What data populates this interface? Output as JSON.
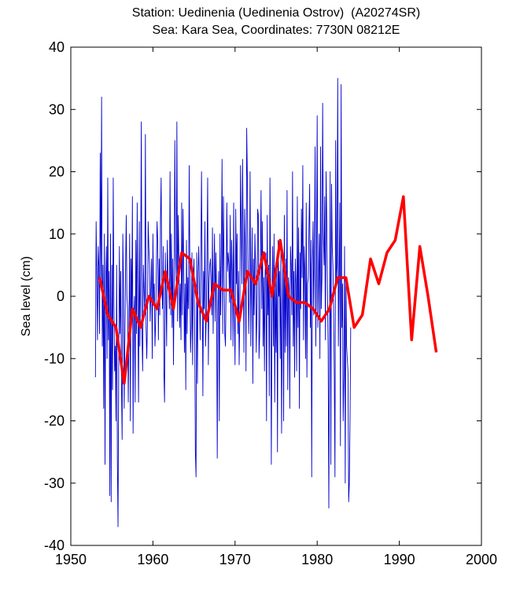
{
  "chart_data": {
    "type": "line",
    "title": "Station: Uedinenia (Uedinenia Ostrov)  (A20274SR)",
    "subtitle": "Sea: Kara Sea, Coordinates: 7730N 08212E",
    "xlabel": "",
    "ylabel": "Sea level (cm)",
    "xlim": [
      1950,
      2000
    ],
    "ylim": [
      -40,
      40
    ],
    "xticks": [
      1950,
      1960,
      1970,
      1980,
      1990,
      2000
    ],
    "yticks": [
      -40,
      -30,
      -20,
      -10,
      0,
      10,
      20,
      30,
      40
    ],
    "grid": false,
    "colors": {
      "monthly": "#0000cc",
      "annual": "#ff0000"
    },
    "series": [
      {
        "kind": "monthly",
        "x_start": 1953.0,
        "x_step": 0.08333,
        "values": [
          -13,
          12,
          3,
          -7,
          8,
          5,
          -6,
          23,
          2,
          32,
          -8,
          5,
          -18,
          10,
          -27,
          3,
          8,
          -10,
          19,
          -7,
          4,
          -32,
          10,
          -33,
          5,
          -15,
          19,
          -1,
          -12,
          -8,
          -20,
          5,
          -26,
          -37,
          -12,
          8,
          -6,
          4,
          -14,
          -23,
          10,
          2,
          -18,
          -7,
          4,
          13,
          0,
          -2,
          -17,
          -5,
          10,
          -20,
          6,
          -4,
          16,
          -22,
          -3,
          0,
          -17,
          9,
          -6,
          15,
          -3,
          -17,
          12,
          -8,
          3,
          28,
          -6,
          -12,
          5,
          1,
          -3,
          26,
          -5,
          -10,
          -4,
          12,
          8,
          5,
          -4,
          1,
          6,
          -10,
          10,
          -1,
          2,
          -8,
          -4,
          4,
          12,
          9,
          -7,
          6,
          -3,
          12,
          19,
          2,
          -2,
          8,
          -12,
          -17,
          7,
          1,
          -8,
          9,
          3,
          2,
          -2,
          20,
          -3,
          10,
          -5,
          6,
          -11,
          3,
          25,
          7,
          2,
          28,
          -4,
          13,
          6,
          -5,
          2,
          -7,
          15,
          -3,
          14,
          5,
          -9,
          2,
          -15,
          9,
          -6,
          3,
          -2,
          21,
          3,
          -9,
          -5,
          7,
          -11,
          3,
          6,
          -4,
          -25,
          -29,
          7,
          -14,
          4,
          8,
          1,
          -7,
          5,
          20,
          3,
          -16,
          4,
          -2,
          12,
          -8,
          -3,
          7,
          19,
          -11,
          2,
          5,
          6,
          2,
          -3,
          11,
          -6,
          2,
          10,
          -4,
          7,
          1,
          -26,
          -2,
          4,
          -20,
          10,
          -3,
          6,
          22,
          -6,
          16,
          5,
          -6,
          -8,
          2,
          15,
          4,
          7,
          5,
          -1,
          13,
          -7,
          9,
          4,
          -8,
          15,
          -3,
          -11,
          14,
          2,
          10,
          -6,
          4,
          -11,
          -3,
          21,
          11,
          2,
          22,
          7,
          -9,
          14,
          8,
          -12,
          27,
          19,
          4,
          -6,
          2,
          20,
          -8,
          3,
          11,
          -14,
          6,
          -3,
          10,
          5,
          -9,
          -2,
          14,
          13,
          -10,
          -6,
          6,
          17,
          -2,
          12,
          -8,
          3,
          -12,
          4,
          7,
          -20,
          13,
          -3,
          5,
          -16,
          19,
          2,
          -27,
          -2,
          8,
          -8,
          10,
          -17,
          4,
          -9,
          5,
          -25,
          9,
          0,
          4,
          -10,
          7,
          -22,
          -4,
          7,
          -20,
          13,
          -9,
          6,
          -8,
          17,
          -15,
          3,
          1,
          -18,
          8,
          5,
          -3,
          20,
          -8,
          4,
          -13,
          6,
          2,
          -12,
          16,
          -5,
          11,
          -18,
          7,
          -2,
          14,
          3,
          21,
          -7,
          8,
          4,
          -10,
          15,
          -13,
          2,
          3,
          11,
          18,
          -5,
          9,
          -29,
          5,
          12,
          -3,
          8,
          24,
          -8,
          6,
          29,
          -5,
          3,
          10,
          -10,
          24,
          -2,
          3,
          31,
          10,
          5,
          16,
          -7,
          20,
          12,
          1,
          -8,
          -34,
          -10,
          20,
          -27,
          18,
          8,
          5,
          -2,
          -13,
          -29,
          25,
          2,
          5,
          35,
          -8,
          3,
          15,
          -24,
          34,
          -5,
          2,
          -20,
          -13,
          8,
          -30,
          3,
          -8,
          -10,
          -12,
          -33,
          -30,
          -20,
          -5
        ]
      },
      {
        "kind": "annual",
        "x": [
          1953.5,
          1954.5,
          1955.5,
          1956.5,
          1957.5,
          1958.5,
          1959.5,
          1960.5,
          1961.5,
          1962.5,
          1963.5,
          1964.5,
          1965.5,
          1966.5,
          1967.5,
          1968.5,
          1969.5,
          1970.5,
          1971.5,
          1972.5,
          1973.5,
          1974.5,
          1975.5,
          1976.5,
          1977.5,
          1978.5,
          1979.5,
          1980.5,
          1981.5,
          1982.5,
          1983.5,
          1984.5,
          1985.5,
          1986.5,
          1987.5,
          1988.5,
          1989.5,
          1990.5,
          1991.5,
          1992.5,
          1993.5,
          1994.5
        ],
        "values": [
          3,
          -3,
          -5,
          -14,
          -2,
          -5,
          0,
          -2,
          4,
          -2,
          7,
          6,
          -1,
          -4,
          2,
          1,
          1,
          -4,
          4,
          2,
          7,
          0,
          9,
          0,
          -1,
          -1,
          -2,
          -4,
          -2,
          3,
          3,
          -5,
          -3,
          6,
          2,
          7,
          9,
          16,
          -7,
          8,
          0,
          -9
        ]
      }
    ]
  }
}
